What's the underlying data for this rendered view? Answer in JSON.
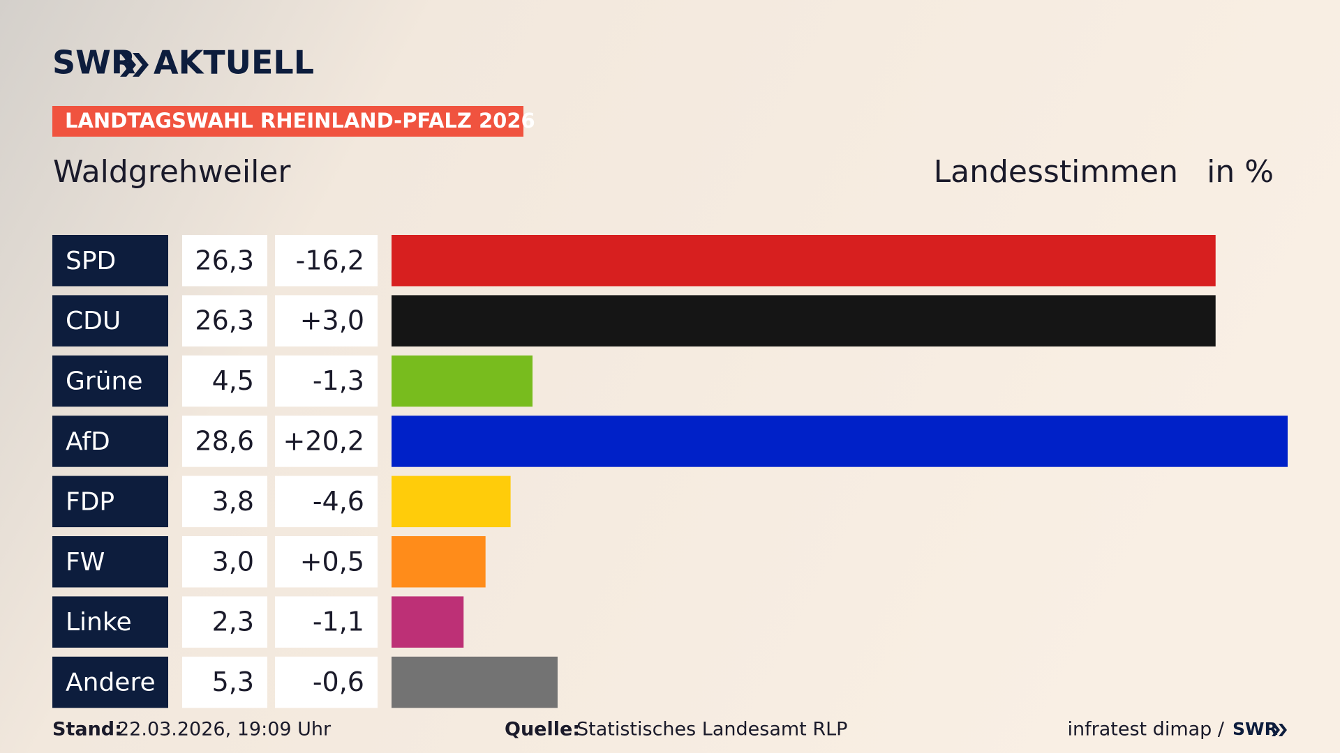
{
  "header": {
    "brand": "SWR",
    "brand_suffix": "AKTUELL",
    "banner": "LANDTAGSWAHL RHEINLAND-PFALZ 2026"
  },
  "chart_data": {
    "type": "bar",
    "title": "Waldgrehweiler",
    "subtitle": "Landesstimmen",
    "unit": "in %",
    "categories": [
      "SPD",
      "CDU",
      "Grüne",
      "AfD",
      "FDP",
      "FW",
      "Linke",
      "Andere"
    ],
    "values": [
      26.3,
      26.3,
      4.5,
      28.6,
      3.8,
      3.0,
      2.3,
      5.3
    ],
    "value_labels": [
      "26,3",
      "26,3",
      "4,5",
      "28,6",
      "3,8",
      "3,0",
      "2,3",
      "5,3"
    ],
    "changes": [
      -16.2,
      3.0,
      -1.3,
      20.2,
      -4.6,
      0.5,
      -1.1,
      -0.6
    ],
    "change_labels": [
      "-16,2",
      "+3,0",
      "-1,3",
      "+20,2",
      "-4,6",
      "+0,5",
      "-1,1",
      "-0,6"
    ],
    "colors": [
      "#d71f1f",
      "#151515",
      "#78bc1e",
      "#0021c8",
      "#ffcc0a",
      "#ff8c1a",
      "#bd3076",
      "#737373"
    ]
  },
  "footer": {
    "stand_label": "Stand:",
    "stand": "22.03.2026, 19:09 Uhr",
    "source_label": "Quelle:",
    "source": "Statistisches Landesamt RLP",
    "credit": "infratest dimap /",
    "credit_logo": "SWR"
  }
}
